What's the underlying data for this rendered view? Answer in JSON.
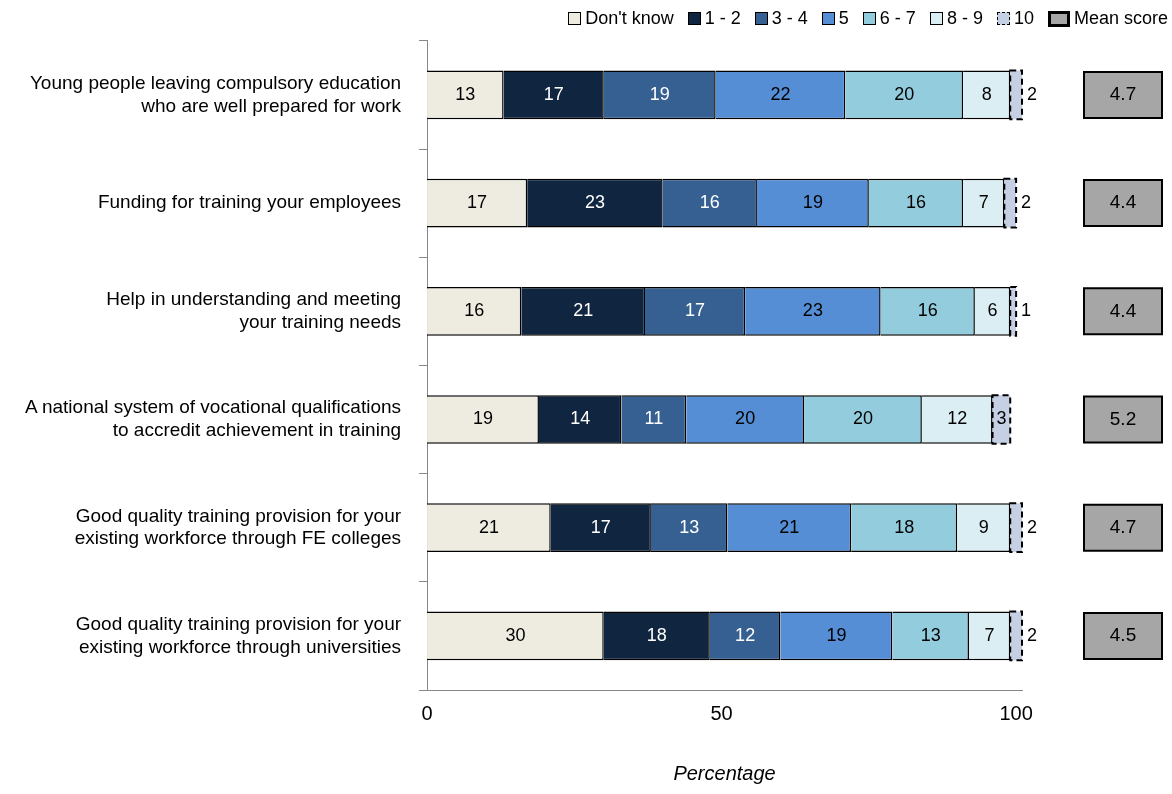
{
  "chart_data": {
    "type": "bar",
    "orientation": "horizontal",
    "stacked": true,
    "xlabel": "Percentage",
    "categories": [
      "Young people leaving compulsory education who are well prepared for work",
      "Funding for training your employees",
      "Help in understanding and meeting your training needs",
      "A national system of vocational qualifications to accredit achievement in training",
      "Good quality training provision for your existing workforce through FE colleges",
      "Good quality training provision for your existing workforce through universities"
    ],
    "series": [
      {
        "name": "Don't know",
        "color": "#eeece1",
        "values": [
          13,
          17,
          16,
          19,
          21,
          30
        ]
      },
      {
        "name": "1 - 2",
        "color": "#10253f",
        "values": [
          17,
          23,
          21,
          14,
          17,
          18
        ]
      },
      {
        "name": "3 - 4",
        "color": "#376092",
        "values": [
          19,
          16,
          17,
          11,
          13,
          12
        ]
      },
      {
        "name": "5",
        "color": "#558ed5",
        "values": [
          22,
          19,
          23,
          20,
          21,
          19
        ]
      },
      {
        "name": "6 - 7",
        "color": "#93cddd",
        "values": [
          20,
          16,
          16,
          20,
          18,
          13
        ]
      },
      {
        "name": "8 - 9",
        "color": "#dbeef4",
        "values": [
          8,
          7,
          6,
          12,
          9,
          7
        ]
      },
      {
        "name": "10",
        "color": "#c6d0e4",
        "line_style": "dashed",
        "values": [
          2,
          2,
          1,
          3,
          2,
          2
        ]
      }
    ],
    "annotations": [
      "Mean score",
      "4.7",
      "4.4",
      "4.4",
      "5.2",
      "4.7",
      "4.5"
    ],
    "xlim": [
      0,
      101
    ],
    "xticks": [
      0,
      50,
      100
    ],
    "data_labels": true,
    "legend": "top right",
    "grid": false
  }
}
